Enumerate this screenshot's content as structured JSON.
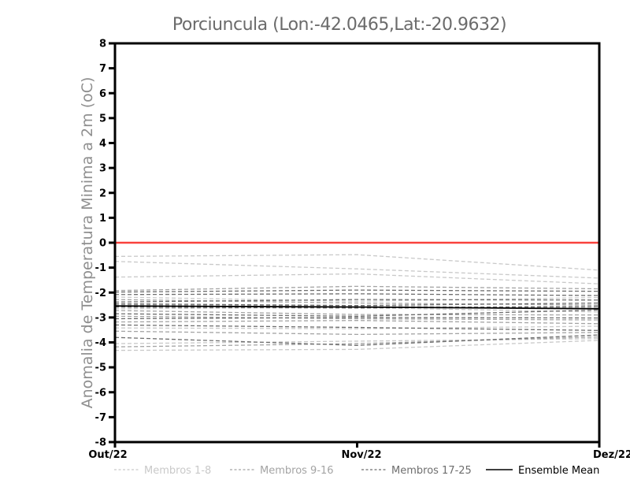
{
  "chart_data": {
    "type": "line",
    "title": "Porciuncula (Lon:-42.0465,Lat:-20.9632)",
    "ylabel": "Anomalia de Temperatura Minima a 2m (oC)",
    "x_categories": [
      "Out/22",
      "Nov/22",
      "Dez/22"
    ],
    "ylim": [
      -8,
      8
    ],
    "yticks": [
      8,
      7,
      6,
      5,
      4,
      3,
      2,
      1,
      0,
      -1,
      -2,
      -3,
      -4,
      -5,
      -6,
      -7,
      -8
    ],
    "grid": "off",
    "legend_position": "bottom",
    "axis_color": "#000000",
    "zero_line": {
      "value": 0,
      "color": "#f9423c"
    },
    "series_groups": [
      {
        "name": "Membros 1-8",
        "color": "#c9c9c9",
        "style": "dashed",
        "members": [
          [
            -0.55,
            -0.48,
            -1.1
          ],
          [
            -0.75,
            -1.05,
            -1.42
          ],
          [
            -1.38,
            -1.25,
            -1.65
          ],
          [
            -2.18,
            -2.35,
            -2.2
          ],
          [
            -2.65,
            -2.6,
            -2.78
          ],
          [
            -3.42,
            -3.45,
            -3.35
          ],
          [
            -4.05,
            -3.95,
            -3.85
          ],
          [
            -4.32,
            -4.28,
            -3.92
          ]
        ]
      },
      {
        "name": "Membros 9-16",
        "color": "#a4a4a4",
        "style": "dashed",
        "members": [
          [
            -1.92,
            -1.75,
            -1.85
          ],
          [
            -2.28,
            -2.42,
            -2.5
          ],
          [
            -2.5,
            -2.55,
            -2.62
          ],
          [
            -2.72,
            -2.88,
            -2.9
          ],
          [
            -2.95,
            -3.05,
            -3.1
          ],
          [
            -3.18,
            -3.12,
            -3.25
          ],
          [
            -3.55,
            -3.68,
            -3.6
          ],
          [
            -4.18,
            -4.05,
            -3.78
          ]
        ]
      },
      {
        "name": "Membros 17-25",
        "color": "#6e6e6e",
        "style": "dashed",
        "members": [
          [
            -1.98,
            -1.9,
            -1.95
          ],
          [
            -2.08,
            -2.05,
            -2.12
          ],
          [
            -2.38,
            -2.28,
            -2.3
          ],
          [
            -2.45,
            -2.52,
            -2.42
          ],
          [
            -2.58,
            -2.62,
            -2.55
          ],
          [
            -2.85,
            -2.95,
            -2.7
          ],
          [
            -3.05,
            -3.0,
            -3.02
          ],
          [
            -3.3,
            -3.4,
            -3.52
          ],
          [
            -3.8,
            -4.12,
            -3.7
          ]
        ]
      }
    ],
    "ensemble_mean": {
      "name": "Ensemble Mean",
      "color": "#000000",
      "style": "solid",
      "values": [
        -2.54,
        -2.58,
        -2.65
      ]
    }
  }
}
